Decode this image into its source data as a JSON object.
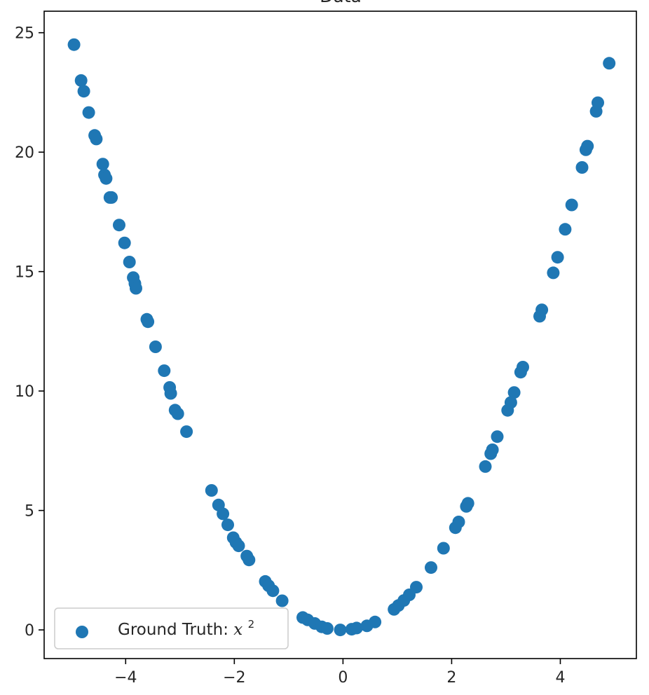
{
  "chart_data": {
    "type": "scatter",
    "title": "Data",
    "xlim": [
      -5.5,
      5.4
    ],
    "ylim": [
      -1.2,
      25.9
    ],
    "xticks": [
      -4,
      -2,
      0,
      2,
      4
    ],
    "yticks": [
      0,
      5,
      10,
      15,
      20,
      25
    ],
    "xtick_labels": [
      "−4",
      "−2",
      "0",
      "2",
      "4"
    ],
    "ytick_labels": [
      "0",
      "5",
      "10",
      "15",
      "20",
      "25"
    ],
    "grid": false,
    "legend_position": "lower-left",
    "series": [
      {
        "name": "Ground Truth: x²",
        "color": "#1f77b4",
        "marker": "circle",
        "x": [
          -4.95,
          -4.82,
          -4.77,
          -4.68,
          -4.57,
          -4.54,
          -4.42,
          -4.39,
          -4.36,
          -4.29,
          -4.26,
          -4.12,
          -4.02,
          -3.93,
          -3.86,
          -3.83,
          -3.81,
          -3.61,
          -3.59,
          -3.45,
          -3.29,
          -3.19,
          -3.17,
          -3.09,
          -3.04,
          -2.88,
          -2.42,
          -2.29,
          -2.21,
          -2.12,
          -2.02,
          -1.97,
          -1.92,
          -1.77,
          -1.73,
          -1.43,
          -1.37,
          -1.29,
          -1.12,
          -0.74,
          -0.65,
          -0.52,
          -0.39,
          -0.29,
          -0.05,
          0.16,
          0.25,
          0.44,
          0.59,
          0.94,
          1.02,
          1.12,
          1.22,
          1.35,
          1.62,
          1.85,
          2.07,
          2.13,
          2.27,
          2.3,
          2.62,
          2.72,
          2.75,
          2.84,
          3.03,
          3.09,
          3.15,
          3.27,
          3.31,
          3.62,
          3.66,
          3.87,
          3.95,
          4.09,
          4.21,
          4.4,
          4.47,
          4.5,
          4.66,
          4.69,
          4.9
        ],
        "y": [
          24.5,
          23.0,
          22.55,
          21.66,
          20.7,
          20.55,
          19.5,
          19.05,
          18.9,
          18.1,
          18.1,
          16.95,
          16.2,
          15.4,
          14.75,
          14.5,
          14.3,
          13.0,
          12.9,
          11.85,
          10.85,
          10.15,
          9.9,
          9.2,
          9.05,
          8.3,
          5.84,
          5.23,
          4.86,
          4.4,
          3.86,
          3.66,
          3.52,
          3.09,
          2.93,
          2.03,
          1.85,
          1.64,
          1.22,
          0.52,
          0.42,
          0.27,
          0.13,
          0.06,
          0.0,
          0.03,
          0.08,
          0.17,
          0.33,
          0.86,
          1.02,
          1.23,
          1.47,
          1.79,
          2.61,
          3.42,
          4.28,
          4.52,
          5.17,
          5.3,
          6.84,
          7.38,
          7.54,
          8.09,
          9.19,
          9.52,
          9.94,
          10.79,
          11.0,
          13.13,
          13.4,
          14.95,
          15.6,
          16.77,
          17.79,
          19.36,
          20.1,
          20.25,
          21.71,
          22.07,
          23.72
        ]
      }
    ]
  },
  "legend": {
    "label_prefix": "Ground Truth: ",
    "label_math": "x",
    "label_sup": "2"
  }
}
